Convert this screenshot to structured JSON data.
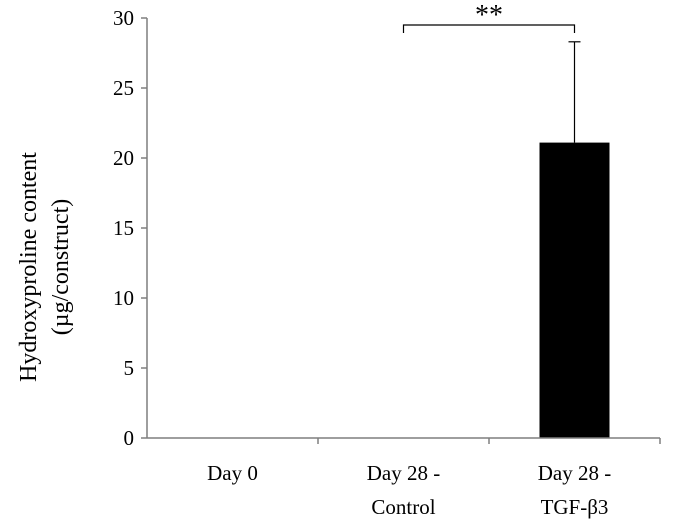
{
  "chart_data": {
    "type": "bar",
    "title": "",
    "ylabel": "Hydroxyproline content",
    "ylabel_unit": "(µg/construct)",
    "ylim": [
      0,
      30
    ],
    "yticks": [
      0,
      5,
      10,
      15,
      20,
      25,
      30
    ],
    "ytick_labels": [
      "0",
      "5",
      "10",
      "15",
      "20",
      "25",
      "30"
    ],
    "categories": [
      {
        "line1": "Day 0",
        "line2": ""
      },
      {
        "line1": "Day 28 -",
        "line2": "Control"
      },
      {
        "line1": "Day 28 -",
        "line2": "TGF-β3"
      }
    ],
    "values": [
      0,
      0,
      21.1
    ],
    "error_plus": [
      0,
      0,
      7.2
    ],
    "bar_color": "#000000",
    "significance": {
      "from": 1,
      "to": 2,
      "label": "**"
    },
    "grid": false,
    "legend": "none"
  }
}
